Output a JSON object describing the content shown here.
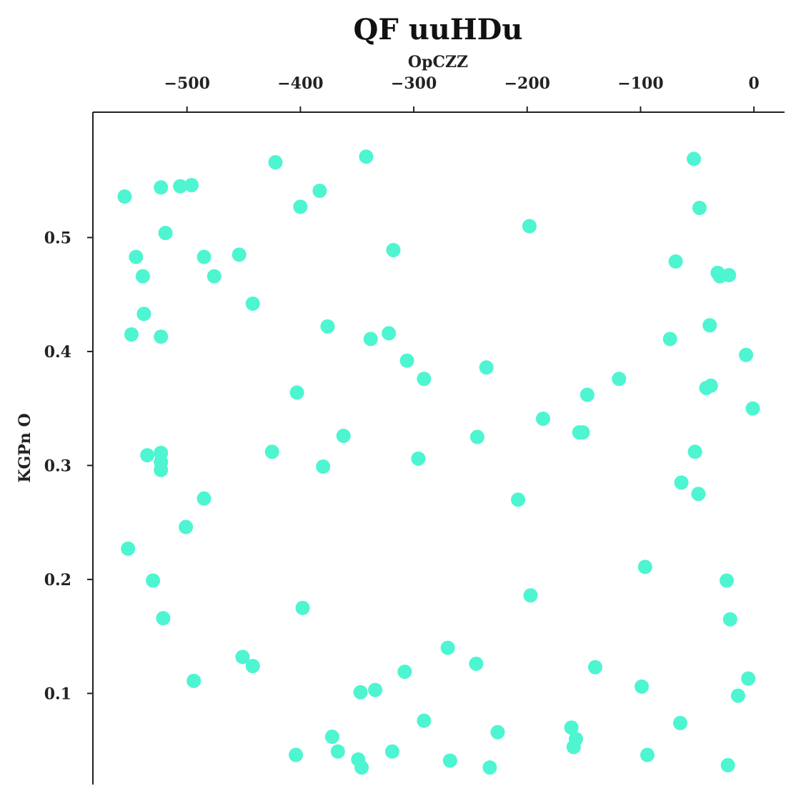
{
  "chart_data": {
    "type": "scatter",
    "title": "QF  uuHDu",
    "xlabel": "OpCZZ",
    "ylabel": "KGPn O",
    "xaxis_position": "top",
    "xlim": [
      -583,
      27
    ],
    "ylim": [
      0.02,
      0.61
    ],
    "xticks": [
      -500,
      -400,
      -300,
      -200,
      -100,
      0
    ],
    "xtick_labels": [
      "−500",
      "−400",
      "−300",
      "−200",
      "−100",
      "0"
    ],
    "yticks": [
      0.1,
      0.2,
      0.3,
      0.4,
      0.5
    ],
    "ytick_labels": [
      "0.1",
      "0.2",
      "0.3",
      "0.4",
      "0.5"
    ],
    "grid": false,
    "marker_color": "#4df5d0",
    "series": [
      {
        "points": [
          [
            -555,
            0.536
          ],
          [
            -523,
            0.544
          ],
          [
            -506,
            0.545
          ],
          [
            -496,
            0.546
          ],
          [
            -422,
            0.566
          ],
          [
            -342,
            0.571
          ],
          [
            -383,
            0.541
          ],
          [
            -400,
            0.527
          ],
          [
            -519,
            0.504
          ],
          [
            -318,
            0.489
          ],
          [
            -198,
            0.51
          ],
          [
            -53,
            0.569
          ],
          [
            -48,
            0.526
          ],
          [
            -545,
            0.483
          ],
          [
            -485,
            0.483
          ],
          [
            -454,
            0.485
          ],
          [
            -539,
            0.466
          ],
          [
            -476,
            0.466
          ],
          [
            -69,
            0.479
          ],
          [
            -32,
            0.469
          ],
          [
            -30,
            0.466
          ],
          [
            -22,
            0.467
          ],
          [
            -442,
            0.442
          ],
          [
            -538,
            0.433
          ],
          [
            -549,
            0.415
          ],
          [
            -523,
            0.413
          ],
          [
            -376,
            0.422
          ],
          [
            -338,
            0.411
          ],
          [
            -322,
            0.416
          ],
          [
            -39,
            0.423
          ],
          [
            -74,
            0.411
          ],
          [
            -306,
            0.392
          ],
          [
            -236,
            0.386
          ],
          [
            -7,
            0.397
          ],
          [
            -291,
            0.376
          ],
          [
            -119,
            0.376
          ],
          [
            -403,
            0.364
          ],
          [
            -147,
            0.362
          ],
          [
            -42,
            0.368
          ],
          [
            -38,
            0.37
          ],
          [
            -1,
            0.35
          ],
          [
            -186,
            0.341
          ],
          [
            -362,
            0.326
          ],
          [
            -244,
            0.325
          ],
          [
            -154,
            0.329
          ],
          [
            -151,
            0.329
          ],
          [
            -535,
            0.309
          ],
          [
            -523,
            0.311
          ],
          [
            -523,
            0.303
          ],
          [
            -523,
            0.296
          ],
          [
            -425,
            0.312
          ],
          [
            -380,
            0.299
          ],
          [
            -296,
            0.306
          ],
          [
            -52,
            0.312
          ],
          [
            -64,
            0.285
          ],
          [
            -49,
            0.275
          ],
          [
            -485,
            0.271
          ],
          [
            -208,
            0.27
          ],
          [
            -501,
            0.246
          ],
          [
            -552,
            0.227
          ],
          [
            -96,
            0.211
          ],
          [
            -530,
            0.199
          ],
          [
            -24,
            0.199
          ],
          [
            -197,
            0.186
          ],
          [
            -398,
            0.175
          ],
          [
            -521,
            0.166
          ],
          [
            -21,
            0.165
          ],
          [
            -270,
            0.14
          ],
          [
            -451,
            0.132
          ],
          [
            -442,
            0.124
          ],
          [
            -245,
            0.126
          ],
          [
            -308,
            0.119
          ],
          [
            -140,
            0.123
          ],
          [
            -494,
            0.111
          ],
          [
            -5,
            0.113
          ],
          [
            -347,
            0.101
          ],
          [
            -334,
            0.103
          ],
          [
            -99,
            0.106
          ],
          [
            -14,
            0.098
          ],
          [
            -291,
            0.076
          ],
          [
            -65,
            0.074
          ],
          [
            -372,
            0.062
          ],
          [
            -226,
            0.066
          ],
          [
            -161,
            0.07
          ],
          [
            -157,
            0.06
          ],
          [
            -159,
            0.053
          ],
          [
            -367,
            0.049
          ],
          [
            -319,
            0.049
          ],
          [
            -404,
            0.046
          ],
          [
            -94,
            0.046
          ],
          [
            -349,
            0.042
          ],
          [
            -268,
            0.041
          ],
          [
            -346,
            0.035
          ],
          [
            -233,
            0.035
          ],
          [
            -23,
            0.037
          ]
        ]
      }
    ]
  }
}
